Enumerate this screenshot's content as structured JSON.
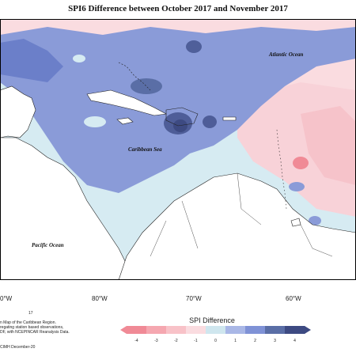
{
  "title": "SPI6 Difference between October 2017 and November 2017",
  "ocean_labels": {
    "atlantic": "Atlantic Ocean",
    "caribbean": "Caribbean Sea",
    "pacific": "Pacific Ocean"
  },
  "longitude_labels": [
    "0°W",
    "80°W",
    "70°W",
    "60°W"
  ],
  "footnote": {
    "marker": "17",
    "lines": [
      "n Map of the Caribbean Region.",
      "regating station based observations,",
      "DF, with NCEPINCAR Reanalysis Data."
    ],
    "credit": "CIMH December-20"
  },
  "legend": {
    "title": "SPI Difference",
    "ticks": [
      "-4",
      "-3",
      "-2",
      "-1",
      "0",
      "1",
      "2",
      "3",
      "4"
    ],
    "colors": [
      "#f08a96",
      "#f5a7b0",
      "#f8c2c8",
      "#fadce0",
      "#cfe6ee",
      "#a9b7e6",
      "#7f92d6",
      "#5a6ea6",
      "#3d4a82"
    ]
  },
  "colors": {
    "land": "#ffffff",
    "neutral_ocean": "#d4e9f1",
    "pink_light": "#f8dadf",
    "blue_mid": "#7f92d6",
    "blue_dark": "#3d4a82"
  }
}
